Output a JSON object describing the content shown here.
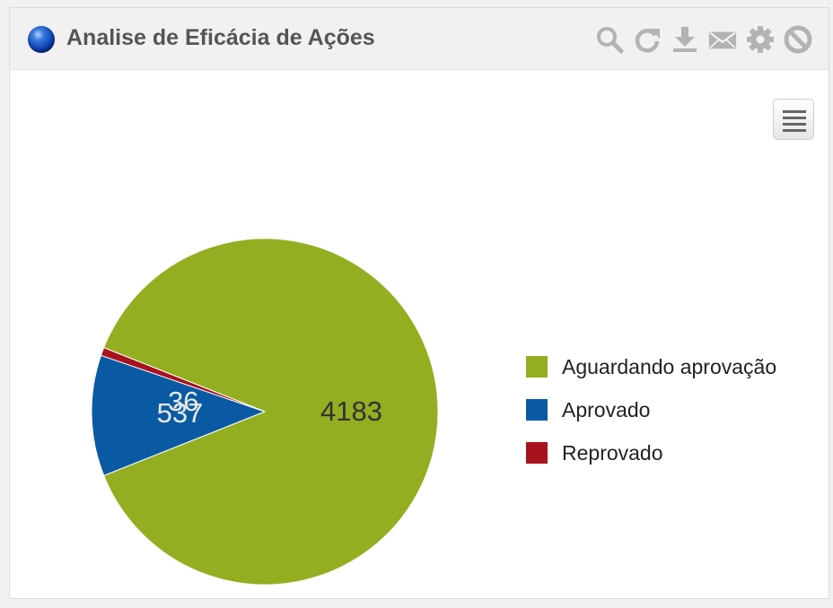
{
  "widget": {
    "title": "Analise de Eficácia de Ações",
    "toolbar_icons": [
      "search-icon",
      "refresh-icon",
      "download-icon",
      "email-icon",
      "gear-icon",
      "block-icon"
    ],
    "menu_icon": "hamburger-menu-icon"
  },
  "chart_data": {
    "type": "pie",
    "title": "",
    "categories": [
      "Aguardando aprovação",
      "Aprovado",
      "Reprovado"
    ],
    "values": [
      4183,
      537,
      36
    ],
    "colors": [
      "#93ae21",
      "#0a5aa3",
      "#a8121e"
    ],
    "value_labels": [
      "4183",
      "537",
      "36"
    ],
    "legend_position": "right",
    "start_slice": "Aguardando aprovação"
  }
}
